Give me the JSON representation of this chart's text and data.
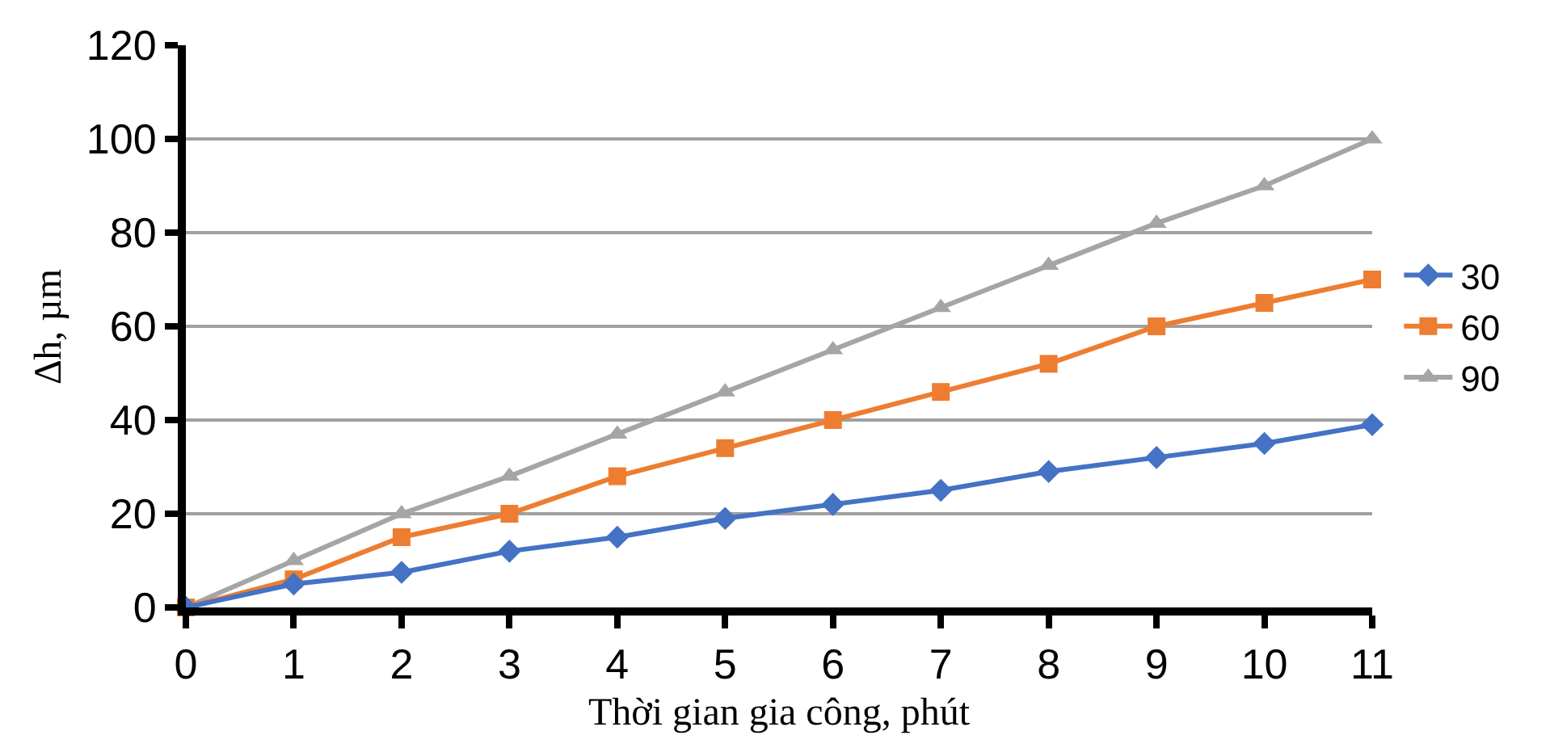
{
  "chart_data": {
    "type": "line",
    "xlabel": "Thời gian gia công, phút",
    "ylabel": "∆h, µm",
    "x": [
      0,
      1,
      2,
      3,
      4,
      5,
      6,
      7,
      8,
      9,
      10,
      11
    ],
    "series": [
      {
        "name": "30",
        "color": "#4472c4",
        "marker": "diamond",
        "values": [
          0,
          5,
          7.5,
          12,
          15,
          19,
          22,
          25,
          29,
          32,
          35,
          39
        ]
      },
      {
        "name": "60",
        "color": "#ed7d31",
        "marker": "square",
        "values": [
          0,
          6,
          15,
          20,
          28,
          34,
          40,
          46,
          52,
          60,
          65,
          70
        ]
      },
      {
        "name": "90",
        "color": "#a5a5a5",
        "marker": "triangle",
        "values": [
          0,
          10,
          20,
          28,
          37,
          46,
          55,
          64,
          73,
          82,
          90,
          100
        ]
      }
    ],
    "xlim": [
      0,
      11
    ],
    "xticks": [
      0,
      1,
      2,
      3,
      4,
      5,
      6,
      7,
      8,
      9,
      10,
      11
    ],
    "ylim": [
      0,
      120
    ],
    "yticks": [
      0,
      20,
      40,
      60,
      80,
      100,
      120
    ],
    "grid": "y",
    "legend": "right",
    "line_style": "solid"
  }
}
